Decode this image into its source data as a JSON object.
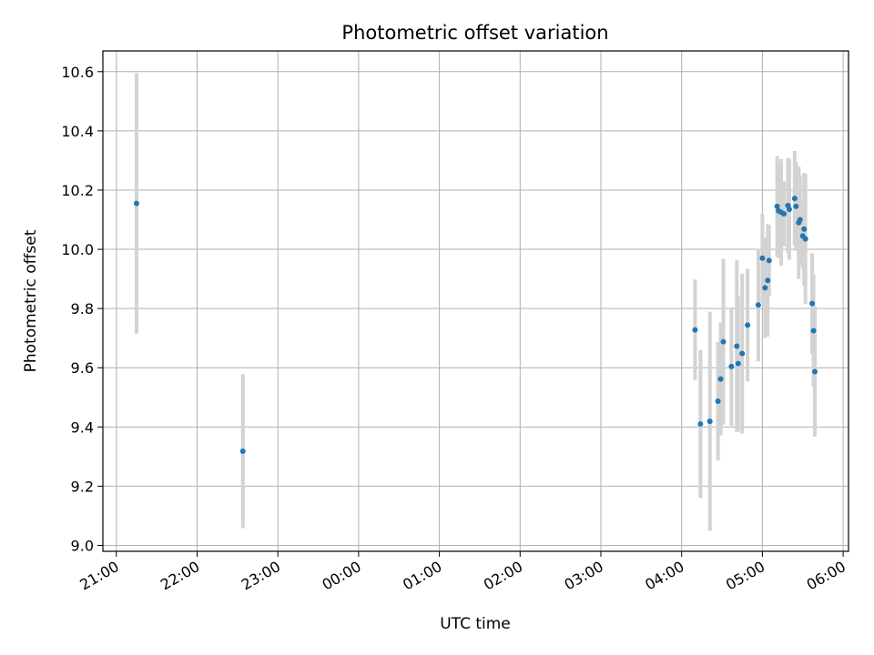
{
  "chart_data": {
    "type": "scatter",
    "title": "Photometric offset variation",
    "xlabel": "UTC time",
    "ylabel": "Photometric offset",
    "x_axis_kind": "time",
    "x_ticks": [
      "21:00",
      "22:00",
      "23:00",
      "00:00",
      "01:00",
      "02:00",
      "03:00",
      "04:00",
      "05:00",
      "06:00"
    ],
    "y_ticks": [
      "9.0",
      "9.2",
      "9.4",
      "9.6",
      "9.8",
      "10.0",
      "10.2",
      "10.4",
      "10.6"
    ],
    "ylim": [
      8.98,
      10.67
    ],
    "xlim": [
      "20:50",
      "06:04"
    ],
    "grid": true,
    "point_color": "#1f77b4",
    "errorbar_color": "#d3d3d3",
    "points": [
      {
        "time": "21:15",
        "y": 10.155,
        "err": 0.44
      },
      {
        "time": "22:34",
        "y": 9.318,
        "err": 0.26
      },
      {
        "time": "04:10",
        "y": 9.728,
        "err": 0.17
      },
      {
        "time": "04:14",
        "y": 9.41,
        "err": 0.25
      },
      {
        "time": "04:21",
        "y": 9.419,
        "err": 0.37
      },
      {
        "time": "04:27",
        "y": 9.487,
        "err": 0.2
      },
      {
        "time": "04:29",
        "y": 9.562,
        "err": 0.19
      },
      {
        "time": "04:31",
        "y": 9.688,
        "err": 0.28
      },
      {
        "time": "04:37",
        "y": 9.604,
        "err": 0.2
      },
      {
        "time": "04:41",
        "y": 9.673,
        "err": 0.29
      },
      {
        "time": "04:42",
        "y": 9.614,
        "err": 0.23
      },
      {
        "time": "04:45",
        "y": 9.648,
        "err": 0.27
      },
      {
        "time": "04:49",
        "y": 9.744,
        "err": 0.19
      },
      {
        "time": "04:57",
        "y": 9.812,
        "err": 0.19
      },
      {
        "time": "05:00",
        "y": 9.97,
        "err": 0.15
      },
      {
        "time": "05:02",
        "y": 9.87,
        "err": 0.17
      },
      {
        "time": "05:04",
        "y": 9.895,
        "err": 0.19
      },
      {
        "time": "05:05",
        "y": 9.962,
        "err": 0.12
      },
      {
        "time": "05:11",
        "y": 10.145,
        "err": 0.17
      },
      {
        "time": "05:12",
        "y": 10.13,
        "err": 0.16
      },
      {
        "time": "05:14",
        "y": 10.125,
        "err": 0.18
      },
      {
        "time": "05:16",
        "y": 10.12,
        "err": 0.11
      },
      {
        "time": "05:19",
        "y": 10.148,
        "err": 0.16
      },
      {
        "time": "05:20",
        "y": 10.135,
        "err": 0.17
      },
      {
        "time": "05:24",
        "y": 10.172,
        "err": 0.16
      },
      {
        "time": "05:25",
        "y": 10.145,
        "err": 0.15
      },
      {
        "time": "05:27",
        "y": 10.09,
        "err": 0.19
      },
      {
        "time": "05:28",
        "y": 10.1,
        "err": 0.15
      },
      {
        "time": "05:30",
        "y": 10.045,
        "err": 0.11
      },
      {
        "time": "05:31",
        "y": 10.068,
        "err": 0.19
      },
      {
        "time": "05:32",
        "y": 10.035,
        "err": 0.22
      },
      {
        "time": "05:37",
        "y": 9.817,
        "err": 0.17
      },
      {
        "time": "05:38",
        "y": 9.725,
        "err": 0.19
      },
      {
        "time": "05:39",
        "y": 9.587,
        "err": 0.22
      }
    ]
  }
}
